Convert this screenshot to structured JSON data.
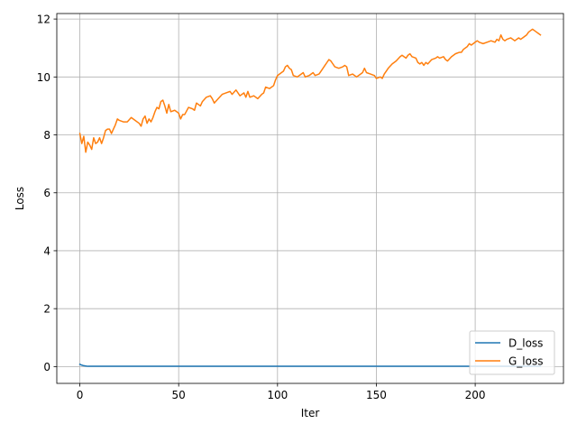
{
  "chart_data": {
    "type": "line",
    "xlabel": "Iter",
    "ylabel": "Loss",
    "xlim": [
      -11.65,
      244.65
    ],
    "ylim": [
      -0.58,
      12.19
    ],
    "xticks": [
      0,
      50,
      100,
      150,
      200
    ],
    "yticks": [
      0,
      2,
      4,
      6,
      8,
      10,
      12
    ],
    "grid": true,
    "legend_position": "lower-right",
    "series": [
      {
        "name": "D_loss",
        "color": "#1f77b4",
        "points": [
          [
            0,
            0.08
          ],
          [
            1,
            0.05
          ],
          [
            2,
            0.03
          ],
          [
            3,
            0.02
          ],
          [
            4,
            0.01
          ],
          [
            233,
            0.01
          ]
        ]
      },
      {
        "name": "G_loss",
        "color": "#ff7f0e",
        "points": [
          [
            0,
            8.05
          ],
          [
            1,
            7.7
          ],
          [
            2,
            7.95
          ],
          [
            3,
            7.4
          ],
          [
            4,
            7.75
          ],
          [
            5,
            7.65
          ],
          [
            6,
            7.5
          ],
          [
            7,
            7.9
          ],
          [
            8,
            7.7
          ],
          [
            9,
            7.75
          ],
          [
            10,
            7.9
          ],
          [
            11,
            7.7
          ],
          [
            12,
            7.9
          ],
          [
            13,
            8.15
          ],
          [
            14,
            8.2
          ],
          [
            15,
            8.2
          ],
          [
            16,
            8.05
          ],
          [
            17,
            8.2
          ],
          [
            18,
            8.35
          ],
          [
            19,
            8.55
          ],
          [
            20,
            8.5
          ],
          [
            22,
            8.45
          ],
          [
            24,
            8.45
          ],
          [
            26,
            8.6
          ],
          [
            28,
            8.5
          ],
          [
            30,
            8.4
          ],
          [
            31,
            8.3
          ],
          [
            32,
            8.55
          ],
          [
            33,
            8.65
          ],
          [
            34,
            8.4
          ],
          [
            35,
            8.55
          ],
          [
            36,
            8.45
          ],
          [
            37,
            8.6
          ],
          [
            38,
            8.8
          ],
          [
            39,
            8.95
          ],
          [
            40,
            8.9
          ],
          [
            41,
            9.15
          ],
          [
            42,
            9.2
          ],
          [
            43,
            9.0
          ],
          [
            44,
            8.75
          ],
          [
            45,
            9.05
          ],
          [
            46,
            8.8
          ],
          [
            48,
            8.85
          ],
          [
            50,
            8.75
          ],
          [
            51,
            8.55
          ],
          [
            52,
            8.7
          ],
          [
            53,
            8.7
          ],
          [
            55,
            8.95
          ],
          [
            57,
            8.9
          ],
          [
            58,
            8.85
          ],
          [
            59,
            9.1
          ],
          [
            60,
            9.05
          ],
          [
            61,
            9.0
          ],
          [
            62,
            9.15
          ],
          [
            64,
            9.3
          ],
          [
            66,
            9.35
          ],
          [
            67,
            9.25
          ],
          [
            68,
            9.1
          ],
          [
            70,
            9.25
          ],
          [
            72,
            9.4
          ],
          [
            74,
            9.45
          ],
          [
            76,
            9.5
          ],
          [
            77,
            9.4
          ],
          [
            79,
            9.55
          ],
          [
            81,
            9.35
          ],
          [
            83,
            9.45
          ],
          [
            84,
            9.3
          ],
          [
            85,
            9.5
          ],
          [
            86,
            9.3
          ],
          [
            88,
            9.35
          ],
          [
            90,
            9.25
          ],
          [
            92,
            9.4
          ],
          [
            93,
            9.45
          ],
          [
            94,
            9.65
          ],
          [
            96,
            9.6
          ],
          [
            98,
            9.7
          ],
          [
            99,
            9.9
          ],
          [
            100,
            10.05
          ],
          [
            102,
            10.15
          ],
          [
            103,
            10.2
          ],
          [
            104,
            10.35
          ],
          [
            105,
            10.4
          ],
          [
            106,
            10.3
          ],
          [
            107,
            10.25
          ],
          [
            108,
            10.05
          ],
          [
            110,
            10.0
          ],
          [
            112,
            10.1
          ],
          [
            113,
            10.15
          ],
          [
            114,
            10.0
          ],
          [
            116,
            10.05
          ],
          [
            118,
            10.15
          ],
          [
            119,
            10.05
          ],
          [
            121,
            10.1
          ],
          [
            122,
            10.2
          ],
          [
            124,
            10.4
          ],
          [
            125,
            10.5
          ],
          [
            126,
            10.6
          ],
          [
            127,
            10.55
          ],
          [
            128,
            10.45
          ],
          [
            129,
            10.35
          ],
          [
            131,
            10.3
          ],
          [
            133,
            10.35
          ],
          [
            134,
            10.4
          ],
          [
            135,
            10.35
          ],
          [
            136,
            10.05
          ],
          [
            138,
            10.1
          ],
          [
            140,
            10.0
          ],
          [
            142,
            10.1
          ],
          [
            143,
            10.15
          ],
          [
            144,
            10.3
          ],
          [
            145,
            10.15
          ],
          [
            147,
            10.1
          ],
          [
            149,
            10.05
          ],
          [
            150,
            9.95
          ],
          [
            152,
            10.0
          ],
          [
            153,
            9.95
          ],
          [
            154,
            10.1
          ],
          [
            155,
            10.2
          ],
          [
            156,
            10.3
          ],
          [
            158,
            10.45
          ],
          [
            160,
            10.55
          ],
          [
            162,
            10.7
          ],
          [
            163,
            10.75
          ],
          [
            164,
            10.7
          ],
          [
            165,
            10.65
          ],
          [
            166,
            10.75
          ],
          [
            167,
            10.8
          ],
          [
            168,
            10.7
          ],
          [
            170,
            10.65
          ],
          [
            171,
            10.5
          ],
          [
            172,
            10.45
          ],
          [
            173,
            10.5
          ],
          [
            174,
            10.4
          ],
          [
            175,
            10.5
          ],
          [
            176,
            10.45
          ],
          [
            178,
            10.6
          ],
          [
            180,
            10.65
          ],
          [
            181,
            10.7
          ],
          [
            182,
            10.65
          ],
          [
            184,
            10.7
          ],
          [
            185,
            10.6
          ],
          [
            186,
            10.55
          ],
          [
            188,
            10.7
          ],
          [
            190,
            10.8
          ],
          [
            192,
            10.85
          ],
          [
            193,
            10.85
          ],
          [
            194,
            10.95
          ],
          [
            196,
            11.05
          ],
          [
            197,
            11.15
          ],
          [
            198,
            11.1
          ],
          [
            199,
            11.15
          ],
          [
            200,
            11.2
          ],
          [
            201,
            11.25
          ],
          [
            202,
            11.2
          ],
          [
            204,
            11.15
          ],
          [
            206,
            11.2
          ],
          [
            208,
            11.25
          ],
          [
            210,
            11.2
          ],
          [
            211,
            11.3
          ],
          [
            212,
            11.25
          ],
          [
            213,
            11.45
          ],
          [
            214,
            11.3
          ],
          [
            215,
            11.25
          ],
          [
            216,
            11.3
          ],
          [
            218,
            11.35
          ],
          [
            219,
            11.3
          ],
          [
            220,
            11.25
          ],
          [
            222,
            11.35
          ],
          [
            223,
            11.3
          ],
          [
            224,
            11.35
          ],
          [
            225,
            11.4
          ],
          [
            226,
            11.45
          ],
          [
            227,
            11.55
          ],
          [
            228,
            11.6
          ],
          [
            229,
            11.65
          ],
          [
            230,
            11.6
          ],
          [
            231,
            11.55
          ],
          [
            232,
            11.5
          ],
          [
            233,
            11.45
          ]
        ]
      }
    ]
  }
}
